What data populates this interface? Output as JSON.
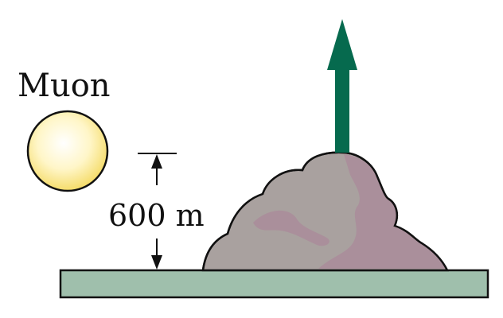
{
  "labels": {
    "particle": "Muon",
    "height": "600 m"
  },
  "colors": {
    "muon_fill": "#fffbe0",
    "muon_edge": "#f7df6f",
    "arrow": "#066a4e",
    "ground": "#9fbfac",
    "mountain_light": "#a9a19f",
    "mountain_dark": "#aa8f9b",
    "outline": "#111111"
  },
  "icons": {
    "particle": "muon-sphere",
    "direction": "upward-arrow",
    "terrain": "mountain"
  }
}
